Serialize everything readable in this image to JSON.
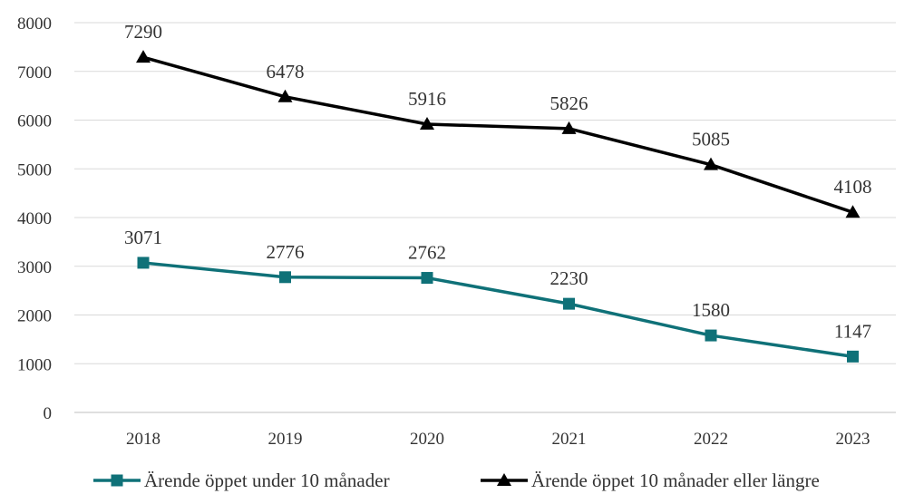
{
  "chart_data": {
    "type": "line",
    "title": "",
    "xlabel": "",
    "ylabel": "",
    "categories": [
      "2018",
      "2019",
      "2020",
      "2021",
      "2022",
      "2023"
    ],
    "ylim": [
      0,
      8000
    ],
    "yticks": [
      "0",
      "1000",
      "2000",
      "3000",
      "4000",
      "5000",
      "6000",
      "7000",
      "8000"
    ],
    "grid": true,
    "legend_position": "bottom",
    "series": [
      {
        "name": "Ärende öppet under 10 månader",
        "values": [
          3071,
          2776,
          2762,
          2230,
          1580,
          1147
        ],
        "labels": [
          "3071",
          "2776",
          "2762",
          "2230",
          "1580",
          "1147"
        ],
        "color": "#0f7178",
        "marker": "square"
      },
      {
        "name": "Ärende öppet 10 månader eller längre",
        "values": [
          7290,
          6478,
          5916,
          5826,
          5085,
          4108
        ],
        "labels": [
          "7290",
          "6478",
          "5916",
          "5826",
          "5085",
          "4108"
        ],
        "color": "#000000",
        "marker": "triangle"
      }
    ]
  }
}
